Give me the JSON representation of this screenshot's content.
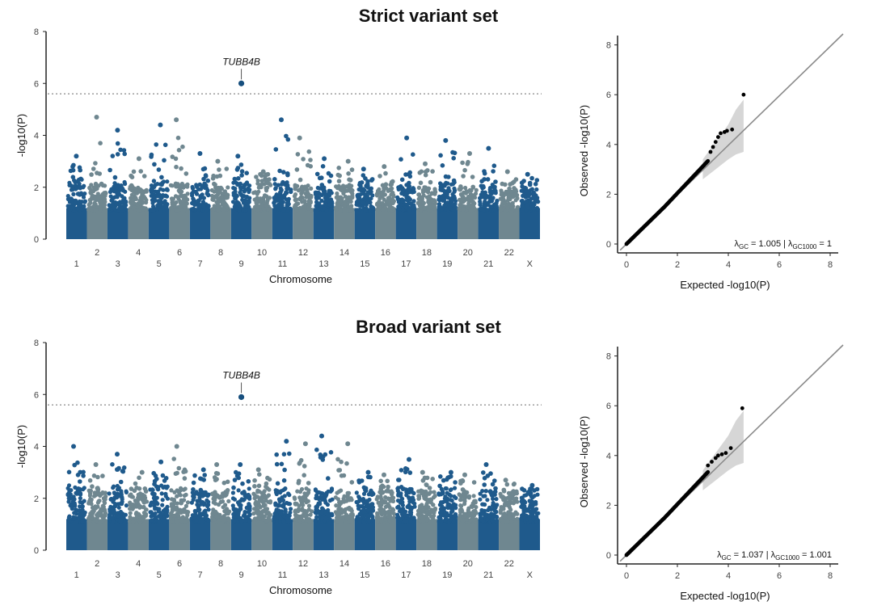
{
  "colors": {
    "dark": "#1f5a8c",
    "grey": "#6f8790",
    "qq_point": "#000000",
    "band": "#cfcfcf",
    "diag": "#8a8a8a",
    "threshold": "#8a8a8a"
  },
  "chart_data": [
    {
      "type": "scatter",
      "kind": "manhattan",
      "title": "Strict variant set",
      "xlabel": "Chromosome",
      "ylabel": "-log10(P)",
      "ylim": [
        0,
        8
      ],
      "yticks": [
        "0",
        "2",
        "4",
        "6",
        "8"
      ],
      "threshold": 5.6,
      "chromosomes": [
        "1",
        "2",
        "3",
        "4",
        "5",
        "6",
        "7",
        "8",
        "9",
        "10",
        "11",
        "12",
        "13",
        "14",
        "15",
        "16",
        "17",
        "18",
        "19",
        "20",
        "21",
        "22",
        "X"
      ],
      "chromosome_labels": [
        {
          "chr": "1",
          "label": "1",
          "row": 1
        },
        {
          "chr": "2",
          "label": "2",
          "row": 0
        },
        {
          "chr": "3",
          "label": "3",
          "row": 1
        },
        {
          "chr": "4",
          "label": "4",
          "row": 0
        },
        {
          "chr": "5",
          "label": "5",
          "row": 1
        },
        {
          "chr": "6",
          "label": "6",
          "row": 0
        },
        {
          "chr": "7",
          "label": "7",
          "row": 1
        },
        {
          "chr": "8",
          "label": "8",
          "row": 0
        },
        {
          "chr": "9",
          "label": "9",
          "row": 1
        },
        {
          "chr": "10",
          "label": "10",
          "row": 0
        },
        {
          "chr": "11",
          "label": "11",
          "row": 1
        },
        {
          "chr": "12",
          "label": "12",
          "row": 0
        },
        {
          "chr": "13",
          "label": "13",
          "row": 1
        },
        {
          "chr": "14",
          "label": "14",
          "row": 0
        },
        {
          "chr": "15",
          "label": "15",
          "row": 1
        },
        {
          "chr": "16",
          "label": "16",
          "row": 0
        },
        {
          "chr": "17",
          "label": "17",
          "row": 1
        },
        {
          "chr": "18",
          "label": "18",
          "row": 0
        },
        {
          "chr": "19",
          "label": "19",
          "row": 1
        },
        {
          "chr": "20",
          "label": "20",
          "row": 0
        },
        {
          "chr": "21",
          "label": "21",
          "row": 1
        },
        {
          "chr": "22",
          "label": "22",
          "row": 0
        },
        {
          "chr": "X",
          "label": "X",
          "row": 1
        }
      ],
      "bulk_max": [
        2.3,
        2.1,
        2.2,
        2.0,
        2.3,
        2.2,
        2.1,
        2.0,
        2.2,
        2.3,
        2.2,
        2.1,
        2.0,
        2.1,
        2.1,
        2.0,
        2.1,
        2.0,
        2.2,
        2.0,
        2.1,
        1.9,
        2.0
      ],
      "top_hits": [
        {
          "chr": "1",
          "value": 3.2
        },
        {
          "chr": "2",
          "value": 4.7
        },
        {
          "chr": "3",
          "value": 4.2
        },
        {
          "chr": "4",
          "value": 3.1
        },
        {
          "chr": "5",
          "value": 4.4
        },
        {
          "chr": "6",
          "value": 4.6
        },
        {
          "chr": "7",
          "value": 3.3
        },
        {
          "chr": "8",
          "value": 3.0
        },
        {
          "chr": "9",
          "value": 3.2
        },
        {
          "chr": "10",
          "value": 2.6
        },
        {
          "chr": "11",
          "value": 4.6
        },
        {
          "chr": "12",
          "value": 3.9
        },
        {
          "chr": "13",
          "value": 3.1
        },
        {
          "chr": "14",
          "value": 3.0
        },
        {
          "chr": "15",
          "value": 2.7
        },
        {
          "chr": "16",
          "value": 2.8
        },
        {
          "chr": "17",
          "value": 3.9
        },
        {
          "chr": "18",
          "value": 2.9
        },
        {
          "chr": "19",
          "value": 3.8
        },
        {
          "chr": "20",
          "value": 3.3
        },
        {
          "chr": "21",
          "value": 3.5
        },
        {
          "chr": "22",
          "value": 2.6
        },
        {
          "chr": "X",
          "value": 2.5
        }
      ],
      "annotated_hit": {
        "gene": "TUBB4B",
        "chr": "9",
        "value": 6.0
      }
    },
    {
      "type": "scatter",
      "kind": "qq",
      "xlabel": "Expected -log10(P)",
      "ylabel": "Observed -log10(P)",
      "xlim": [
        0,
        8
      ],
      "ylim": [
        0,
        8
      ],
      "xticks": [
        "0",
        "2",
        "4",
        "6",
        "8"
      ],
      "yticks": [
        "0",
        "2",
        "4",
        "6",
        "8"
      ],
      "lambda_gc": "1.005",
      "lambda_gc1000": "1",
      "tail_points": [
        [
          3.3,
          3.7
        ],
        [
          3.4,
          3.9
        ],
        [
          3.5,
          4.1
        ],
        [
          3.6,
          4.3
        ],
        [
          3.7,
          4.45
        ],
        [
          3.85,
          4.5
        ],
        [
          3.95,
          4.55
        ],
        [
          4.15,
          4.6
        ],
        [
          4.6,
          6.0
        ]
      ],
      "ci_band": [
        [
          3.0,
          3.4,
          2.6
        ],
        [
          3.5,
          4.1,
          3.0
        ],
        [
          4.0,
          4.8,
          3.4
        ],
        [
          4.3,
          5.4,
          3.6
        ],
        [
          4.6,
          5.8,
          3.7
        ]
      ]
    },
    {
      "type": "scatter",
      "kind": "manhattan",
      "title": "Broad variant set",
      "xlabel": "Chromosome",
      "ylabel": "-log10(P)",
      "ylim": [
        0,
        8
      ],
      "yticks": [
        "0",
        "2",
        "4",
        "6",
        "8"
      ],
      "threshold": 5.6,
      "chromosomes": [
        "1",
        "2",
        "3",
        "4",
        "5",
        "6",
        "7",
        "8",
        "9",
        "10",
        "11",
        "12",
        "13",
        "14",
        "15",
        "16",
        "17",
        "18",
        "19",
        "20",
        "21",
        "22",
        "X"
      ],
      "chromosome_labels": [
        {
          "chr": "1",
          "label": "1",
          "row": 1
        },
        {
          "chr": "2",
          "label": "2",
          "row": 0
        },
        {
          "chr": "3",
          "label": "3",
          "row": 1
        },
        {
          "chr": "4",
          "label": "4",
          "row": 0
        },
        {
          "chr": "5",
          "label": "5",
          "row": 1
        },
        {
          "chr": "6",
          "label": "6",
          "row": 0
        },
        {
          "chr": "7",
          "label": "7",
          "row": 1
        },
        {
          "chr": "8",
          "label": "8",
          "row": 0
        },
        {
          "chr": "9",
          "label": "9",
          "row": 1
        },
        {
          "chr": "10",
          "label": "10",
          "row": 0
        },
        {
          "chr": "11",
          "label": "11",
          "row": 1
        },
        {
          "chr": "12",
          "label": "12",
          "row": 0
        },
        {
          "chr": "13",
          "label": "13",
          "row": 1
        },
        {
          "chr": "14",
          "label": "14",
          "row": 0
        },
        {
          "chr": "15",
          "label": "15",
          "row": 1
        },
        {
          "chr": "16",
          "label": "16",
          "row": 0
        },
        {
          "chr": "17",
          "label": "17",
          "row": 1
        },
        {
          "chr": "18",
          "label": "18",
          "row": 0
        },
        {
          "chr": "19",
          "label": "19",
          "row": 1
        },
        {
          "chr": "20",
          "label": "20",
          "row": 0
        },
        {
          "chr": "21",
          "label": "21",
          "row": 1
        },
        {
          "chr": "22",
          "label": "22",
          "row": 0
        },
        {
          "chr": "X",
          "label": "X",
          "row": 1
        }
      ],
      "bulk_max": [
        2.5,
        2.3,
        2.5,
        2.2,
        2.5,
        2.4,
        2.3,
        2.3,
        2.4,
        2.4,
        2.5,
        2.4,
        2.4,
        2.3,
        2.3,
        2.3,
        2.4,
        2.3,
        2.4,
        2.2,
        2.3,
        2.2,
        2.2
      ],
      "top_hits": [
        {
          "chr": "1",
          "value": 4.0
        },
        {
          "chr": "2",
          "value": 3.3
        },
        {
          "chr": "3",
          "value": 3.7
        },
        {
          "chr": "4",
          "value": 3.0
        },
        {
          "chr": "5",
          "value": 3.4
        },
        {
          "chr": "6",
          "value": 4.0
        },
        {
          "chr": "7",
          "value": 3.1
        },
        {
          "chr": "8",
          "value": 3.3
        },
        {
          "chr": "9",
          "value": 3.3
        },
        {
          "chr": "10",
          "value": 3.1
        },
        {
          "chr": "11",
          "value": 4.2
        },
        {
          "chr": "12",
          "value": 4.1
        },
        {
          "chr": "13",
          "value": 4.4
        },
        {
          "chr": "14",
          "value": 4.1
        },
        {
          "chr": "15",
          "value": 3.0
        },
        {
          "chr": "16",
          "value": 2.9
        },
        {
          "chr": "17",
          "value": 3.5
        },
        {
          "chr": "18",
          "value": 3.0
        },
        {
          "chr": "19",
          "value": 3.0
        },
        {
          "chr": "20",
          "value": 2.9
        },
        {
          "chr": "21",
          "value": 3.3
        },
        {
          "chr": "22",
          "value": 2.7
        },
        {
          "chr": "X",
          "value": 2.5
        }
      ],
      "annotated_hit": {
        "gene": "TUBB4B",
        "chr": "9",
        "value": 5.9
      }
    },
    {
      "type": "scatter",
      "kind": "qq",
      "xlabel": "Expected -log10(P)",
      "ylabel": "Observed -log10(P)",
      "xlim": [
        0,
        8
      ],
      "ylim": [
        0,
        8
      ],
      "xticks": [
        "0",
        "2",
        "4",
        "6",
        "8"
      ],
      "yticks": [
        "0",
        "2",
        "4",
        "6",
        "8"
      ],
      "lambda_gc": "1.037",
      "lambda_gc1000": "1.001",
      "tail_points": [
        [
          3.2,
          3.6
        ],
        [
          3.35,
          3.75
        ],
        [
          3.5,
          3.9
        ],
        [
          3.6,
          4.0
        ],
        [
          3.75,
          4.05
        ],
        [
          3.9,
          4.1
        ],
        [
          4.1,
          4.3
        ],
        [
          4.55,
          5.9
        ]
      ],
      "ci_band": [
        [
          3.0,
          3.4,
          2.6
        ],
        [
          3.5,
          4.1,
          3.0
        ],
        [
          4.0,
          4.8,
          3.4
        ],
        [
          4.3,
          5.4,
          3.6
        ],
        [
          4.6,
          5.8,
          3.7
        ]
      ]
    }
  ]
}
